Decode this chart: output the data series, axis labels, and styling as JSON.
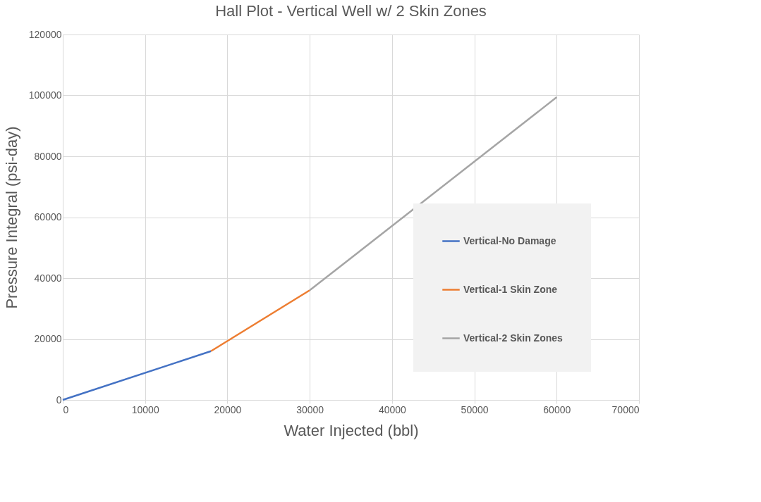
{
  "chart_data": {
    "type": "line",
    "title": "Hall Plot - Vertical Well w/ 2 Skin Zones",
    "xlabel": "Water Injected  (bbl)",
    "ylabel": "Pressure Integral (psi-day)",
    "series": [
      {
        "name": "Vertical-No Damage",
        "color": "#4472c4",
        "x": [
          0,
          18000
        ],
        "values": [
          0,
          16000
        ]
      },
      {
        "name": "Vertical-1 Skin Zone",
        "color": "#ed7d31",
        "x": [
          18000,
          30000
        ],
        "values": [
          16000,
          36000
        ]
      },
      {
        "name": "Vertical-2 Skin Zones",
        "color": "#a5a5a5",
        "x": [
          30000,
          60000
        ],
        "values": [
          36000,
          99400
        ]
      }
    ],
    "xlim": [
      0,
      70000
    ],
    "xticks": [
      0,
      10000,
      20000,
      30000,
      40000,
      50000,
      60000,
      70000
    ],
    "ylim": [
      0,
      120000
    ],
    "yticks": [
      0,
      20000,
      40000,
      60000,
      80000,
      100000,
      120000
    ],
    "grid": true,
    "legend": "right",
    "marker": "none",
    "line_style": "solid"
  }
}
